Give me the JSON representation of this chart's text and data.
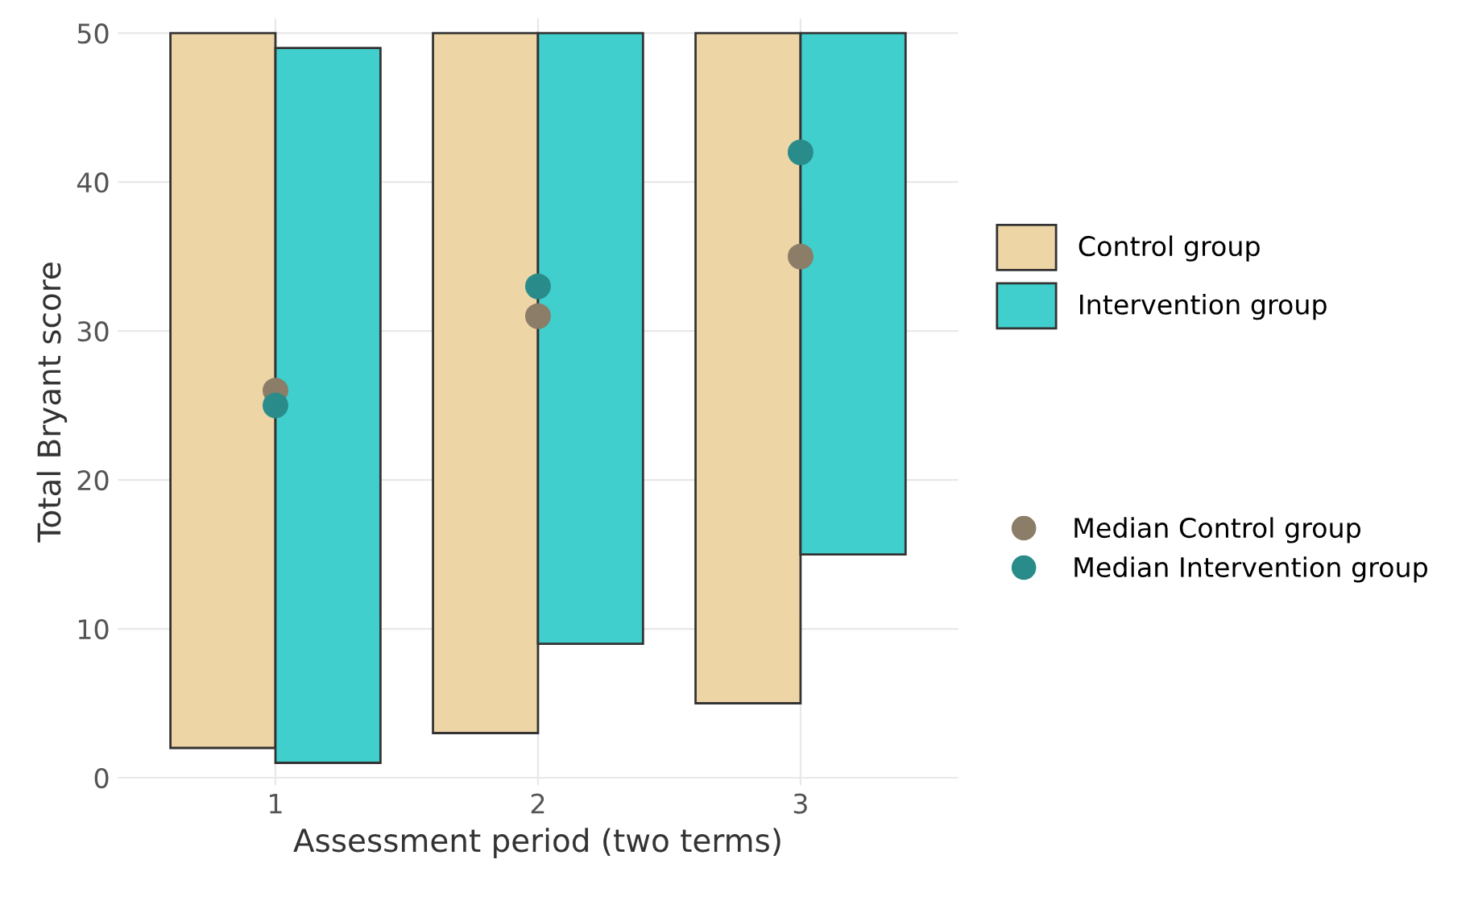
{
  "chart_data": {
    "type": "bar",
    "xlabel": "Assessment period (two terms)",
    "ylabel": "Total Bryant score",
    "categories": [
      "1",
      "2",
      "3"
    ],
    "series": [
      {
        "name": "Control group",
        "color": "#edd5a6",
        "base": [
          2,
          3,
          5
        ],
        "values": [
          48,
          47,
          45
        ]
      },
      {
        "name": "Intervention group",
        "color": "#40cfcc",
        "base": [
          1,
          9,
          15
        ],
        "values": [
          48,
          41,
          35
        ]
      },
      {
        "name": "Median Control group",
        "type": "scatter",
        "color": "#8b7d67",
        "x": [
          "1",
          "2",
          "3"
        ],
        "values": [
          26,
          31,
          35
        ]
      },
      {
        "name": "Median Intervention group",
        "type": "scatter",
        "color": "#2a8c8a",
        "x": [
          "1",
          "2",
          "3"
        ],
        "values": [
          25,
          33,
          42
        ]
      }
    ],
    "ylim": [
      -0.5,
      51
    ],
    "yticks": [
      0,
      10,
      20,
      30,
      40,
      50
    ],
    "grid": true,
    "legend": "right",
    "marker": "circle"
  }
}
